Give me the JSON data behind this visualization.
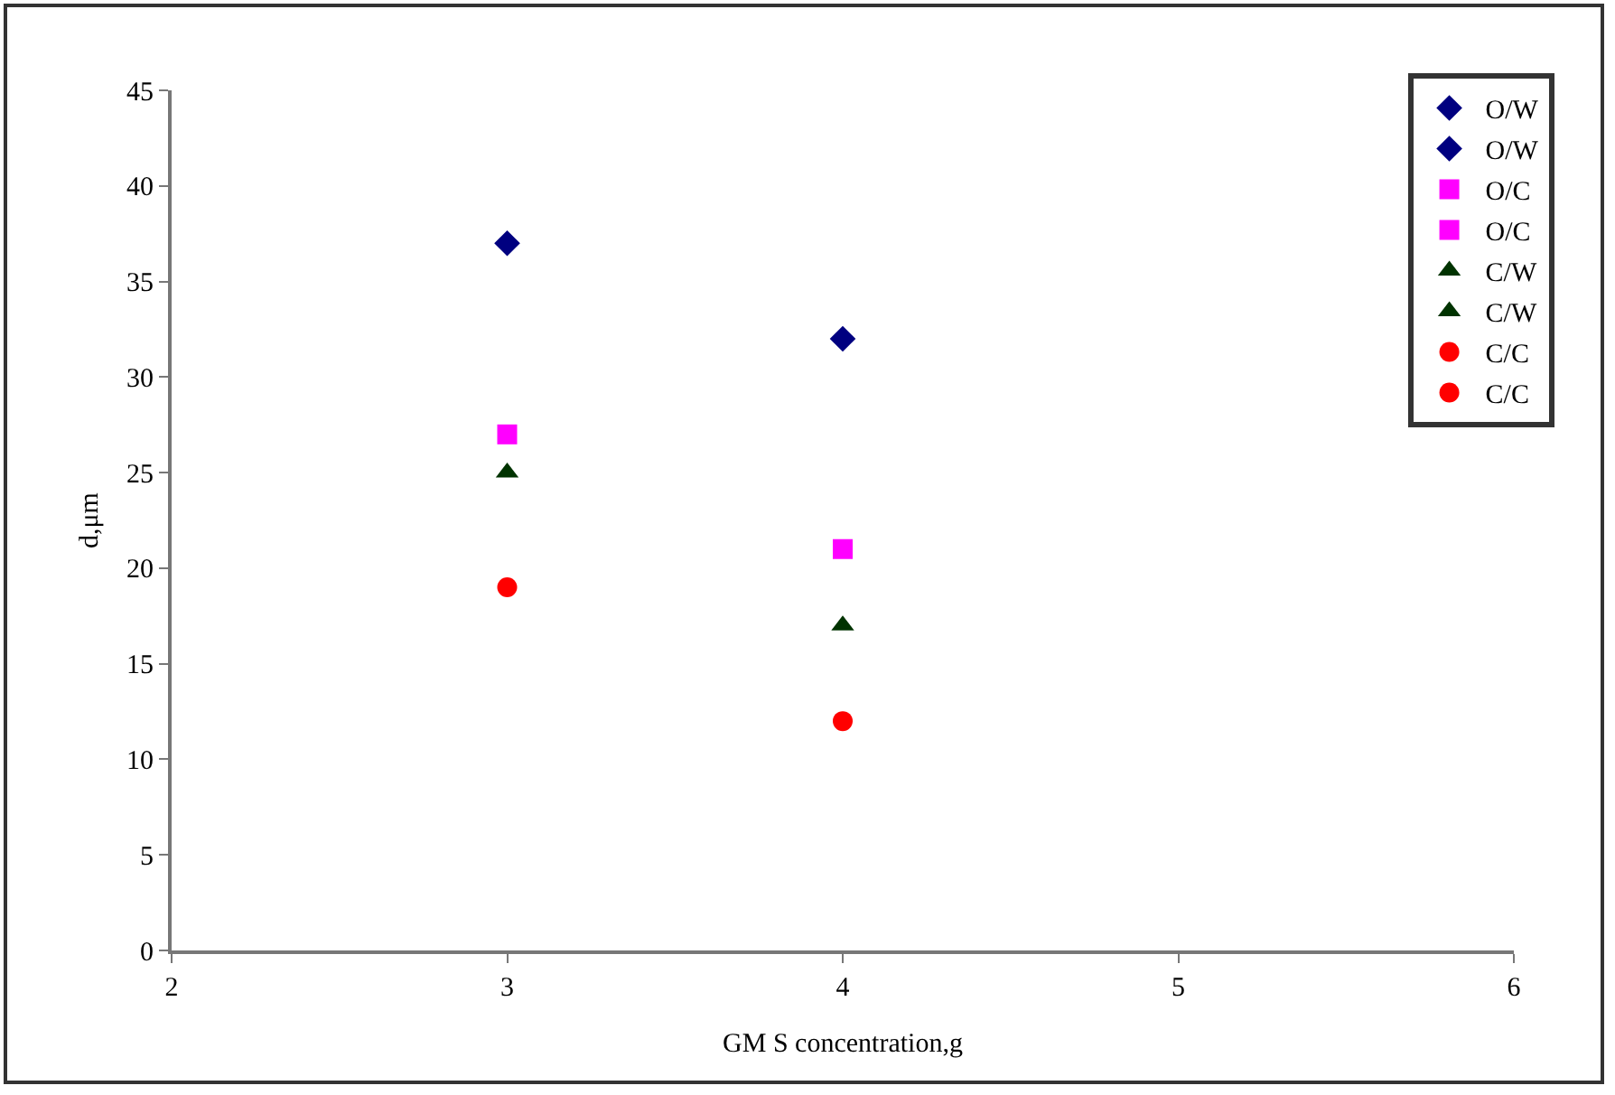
{
  "chart_data": {
    "type": "scatter",
    "xlabel": "GM S concentration,g",
    "ylabel": "d,μm",
    "x": [
      3,
      4
    ],
    "xlim": [
      2,
      6
    ],
    "xticks": [
      2,
      3,
      4,
      5,
      6
    ],
    "ylim": [
      0,
      45
    ],
    "yticks": [
      0,
      5,
      10,
      15,
      20,
      25,
      30,
      35,
      40,
      45
    ],
    "grid": false,
    "legend": "top right",
    "series": [
      {
        "name": "O/W",
        "color": "#000080",
        "marker": "diamond",
        "values": [
          37,
          null
        ]
      },
      {
        "name": "O/W",
        "color": "#000080",
        "marker": "diamond",
        "values": [
          null,
          32
        ]
      },
      {
        "name": "O/C",
        "color": "#ff00ff",
        "marker": "square",
        "values": [
          27,
          null
        ]
      },
      {
        "name": "O/C",
        "color": "#ff00ff",
        "marker": "square",
        "values": [
          null,
          21
        ]
      },
      {
        "name": "C/W",
        "color": "#003300",
        "marker": "triangle",
        "values": [
          25,
          null
        ]
      },
      {
        "name": "C/W",
        "color": "#003300",
        "marker": "triangle",
        "values": [
          null,
          17
        ]
      },
      {
        "name": "C/C",
        "color": "#ff0000",
        "marker": "circle",
        "values": [
          19,
          null
        ]
      },
      {
        "name": "C/C",
        "color": "#ff0000",
        "marker": "circle",
        "values": [
          null,
          12
        ]
      }
    ]
  }
}
